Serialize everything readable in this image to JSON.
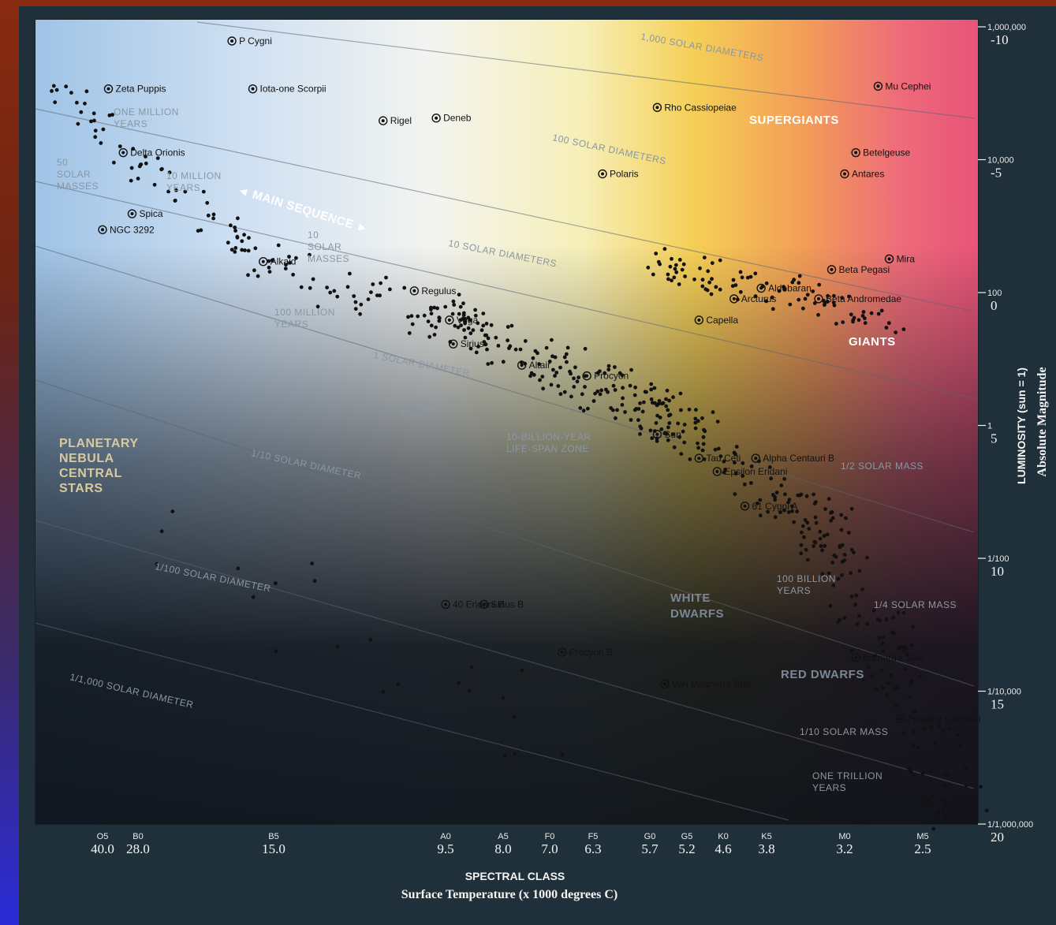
{
  "chart_data": {
    "type": "scatter",
    "title": "",
    "xlabel": "SPECTRAL CLASS",
    "xlabel_sub": "Surface Temperature (x 1000 degrees C)",
    "ylabel": "LUMINOSITY (sun = 1)",
    "ylabel_right": "Absolute Magnitude",
    "x_scale": "spectral class (temperature decreasing to the right)",
    "y_scale": "log",
    "x_ticks": [
      {
        "class": "O5",
        "temp": "40.0"
      },
      {
        "class": "B0",
        "temp": "28.0"
      },
      {
        "class": "B5",
        "temp": "15.0"
      },
      {
        "class": "A0",
        "temp": "9.5"
      },
      {
        "class": "A5",
        "temp": "8.0"
      },
      {
        "class": "F0",
        "temp": "7.0"
      },
      {
        "class": "F5",
        "temp": "6.3"
      },
      {
        "class": "G0",
        "temp": "5.7"
      },
      {
        "class": "G5",
        "temp": "5.2"
      },
      {
        "class": "K0",
        "temp": "4.6"
      },
      {
        "class": "K5",
        "temp": "3.8"
      },
      {
        "class": "M0",
        "temp": "3.2"
      },
      {
        "class": "M5",
        "temp": "2.5"
      }
    ],
    "y_ticks": [
      {
        "luminosity": "1,000,000",
        "magnitude": "-10"
      },
      {
        "luminosity": "10,000",
        "magnitude": "-5"
      },
      {
        "luminosity": "100",
        "magnitude": "0"
      },
      {
        "luminosity": "1",
        "magnitude": "5"
      },
      {
        "luminosity": "1/100",
        "magnitude": "10"
      },
      {
        "luminosity": "1/10,000",
        "magnitude": "15"
      },
      {
        "luminosity": "1/1,000,000",
        "magnitude": "20"
      }
    ],
    "named_stars": [
      {
        "name": "Zeta Puppis",
        "temp": 38.0,
        "magnitude": -8.2
      },
      {
        "name": "P Cygni",
        "temp": 19.0,
        "magnitude": -10.0
      },
      {
        "name": "Iota-one Scorpii",
        "temp": 17.0,
        "magnitude": -8.2
      },
      {
        "name": "Rigel",
        "temp": 11.5,
        "magnitude": -7.0
      },
      {
        "name": "Deneb",
        "temp": 9.8,
        "magnitude": -7.1
      },
      {
        "name": "Rho Cassiopeiae",
        "temp": 5.6,
        "magnitude": -7.5
      },
      {
        "name": "Mu Cephei",
        "temp": 2.9,
        "magnitude": -8.3
      },
      {
        "name": "Delta Orionis",
        "temp": 33.0,
        "magnitude": -5.8
      },
      {
        "name": "Betelgeuse",
        "temp": 3.1,
        "magnitude": -5.8
      },
      {
        "name": "Antares",
        "temp": 3.2,
        "magnitude": -5.0
      },
      {
        "name": "Polaris",
        "temp": 6.2,
        "magnitude": -5.0
      },
      {
        "name": "Spica",
        "temp": 30.0,
        "magnitude": -3.5
      },
      {
        "name": "NGC 3292",
        "temp": 40.0,
        "magnitude": -2.9
      },
      {
        "name": "Alkaid",
        "temp": 16.0,
        "magnitude": -1.7
      },
      {
        "name": "Aldebaran",
        "temp": 3.9,
        "magnitude": -0.7
      },
      {
        "name": "Beta Pegasi",
        "temp": 3.3,
        "magnitude": -1.4
      },
      {
        "name": "Mira",
        "temp": 2.8,
        "magnitude": -1.8
      },
      {
        "name": "Arcturus",
        "temp": 4.4,
        "magnitude": -0.3
      },
      {
        "name": "Regulus",
        "temp": 10.5,
        "magnitude": -0.6
      },
      {
        "name": "Vega",
        "temp": 9.4,
        "magnitude": 0.5
      },
      {
        "name": "Beta Andromedae",
        "temp": 3.4,
        "magnitude": -0.3
      },
      {
        "name": "Capella",
        "temp": 5.0,
        "magnitude": 0.5
      },
      {
        "name": "Sirius",
        "temp": 9.3,
        "magnitude": 1.4
      },
      {
        "name": "Procyon",
        "temp": 6.4,
        "magnitude": 2.6
      },
      {
        "name": "Altair",
        "temp": 7.6,
        "magnitude": 2.2
      },
      {
        "name": "Alpha Centauri B",
        "temp": 4.0,
        "magnitude": 5.7
      },
      {
        "name": "Sun",
        "temp": 5.6,
        "magnitude": 4.8
      },
      {
        "name": "Tau Ceti",
        "temp": 5.0,
        "magnitude": 5.7
      },
      {
        "name": "Epsilon Eridani",
        "temp": 4.7,
        "magnitude": 6.2
      },
      {
        "name": "61 Cygni A",
        "temp": 4.2,
        "magnitude": 7.5
      },
      {
        "name": "Sirius B",
        "temp": 8.5,
        "magnitude": 11.2
      },
      {
        "name": "40 Eridani B",
        "temp": 9.5,
        "magnitude": 11.2
      },
      {
        "name": "Procyon B",
        "temp": 6.8,
        "magnitude": 13.0
      },
      {
        "name": "Barnard's Star",
        "temp": 3.1,
        "magnitude": 13.2
      },
      {
        "name": "Van Maanen's Star",
        "temp": 5.5,
        "magnitude": 14.2
      },
      {
        "name": "Proxima Centauri",
        "temp": 2.7,
        "magnitude": 15.5
      },
      {
        "name": "VB 10",
        "temp": 2.4,
        "magnitude": 18.6
      }
    ],
    "regions": [
      "SUPERGIANTS",
      "GIANTS",
      "MAIN SEQUENCE",
      "WHITE DWARFS",
      "RED DWARFS",
      "PLANETARY NEBULA CENTRAL STARS",
      "10-BILLION-YEAR LIFE-SPAN ZONE"
    ],
    "diameter_lines": [
      "1,000 SOLAR DIAMETERS",
      "100 SOLAR DIAMETERS",
      "10 SOLAR DIAMETERS",
      "1 SOLAR DIAMETER",
      "1/10 SOLAR DIAMETER",
      "1/100 SOLAR DIAMETER",
      "1/1,000 SOLAR DIAMETER"
    ],
    "annotations": [
      "ONE MILLION YEARS",
      "10 MILLION YEARS",
      "100 MILLION YEARS",
      "ONE BILLION YEARS",
      "100 BILLION YEARS",
      "ONE TRILLION YEARS",
      "50 SOLAR MASSES",
      "10 SOLAR MASSES",
      "1/2 SOLAR MASS",
      "1/4 SOLAR MASS",
      "1/10 SOLAR MASS"
    ]
  }
}
